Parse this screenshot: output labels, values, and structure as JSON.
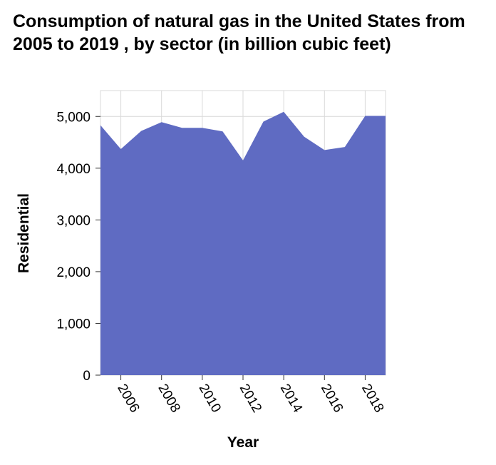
{
  "chart_data": {
    "type": "area",
    "title": "Consumption of natural gas in the United States from 2005 to 2019 , by sector (in billion cubic feet)",
    "xlabel": "Year",
    "ylabel": "Residential",
    "x": [
      2005,
      2006,
      2007,
      2008,
      2009,
      2010,
      2011,
      2012,
      2013,
      2014,
      2015,
      2016,
      2017,
      2018,
      2019
    ],
    "values": [
      4830,
      4370,
      4720,
      4890,
      4780,
      4780,
      4710,
      4150,
      4900,
      5090,
      4610,
      4350,
      4410,
      5010,
      5010
    ],
    "xlim": [
      2005,
      2019
    ],
    "ylim": [
      0,
      5500
    ],
    "x_ticks": [
      "2006",
      "2008",
      "2010",
      "2012",
      "2014",
      "2016",
      "2018"
    ],
    "y_ticks": [
      "0",
      "1,000",
      "2,000",
      "3,000",
      "4,000",
      "5,000"
    ],
    "grid": true,
    "color": "#5f6bc2"
  }
}
